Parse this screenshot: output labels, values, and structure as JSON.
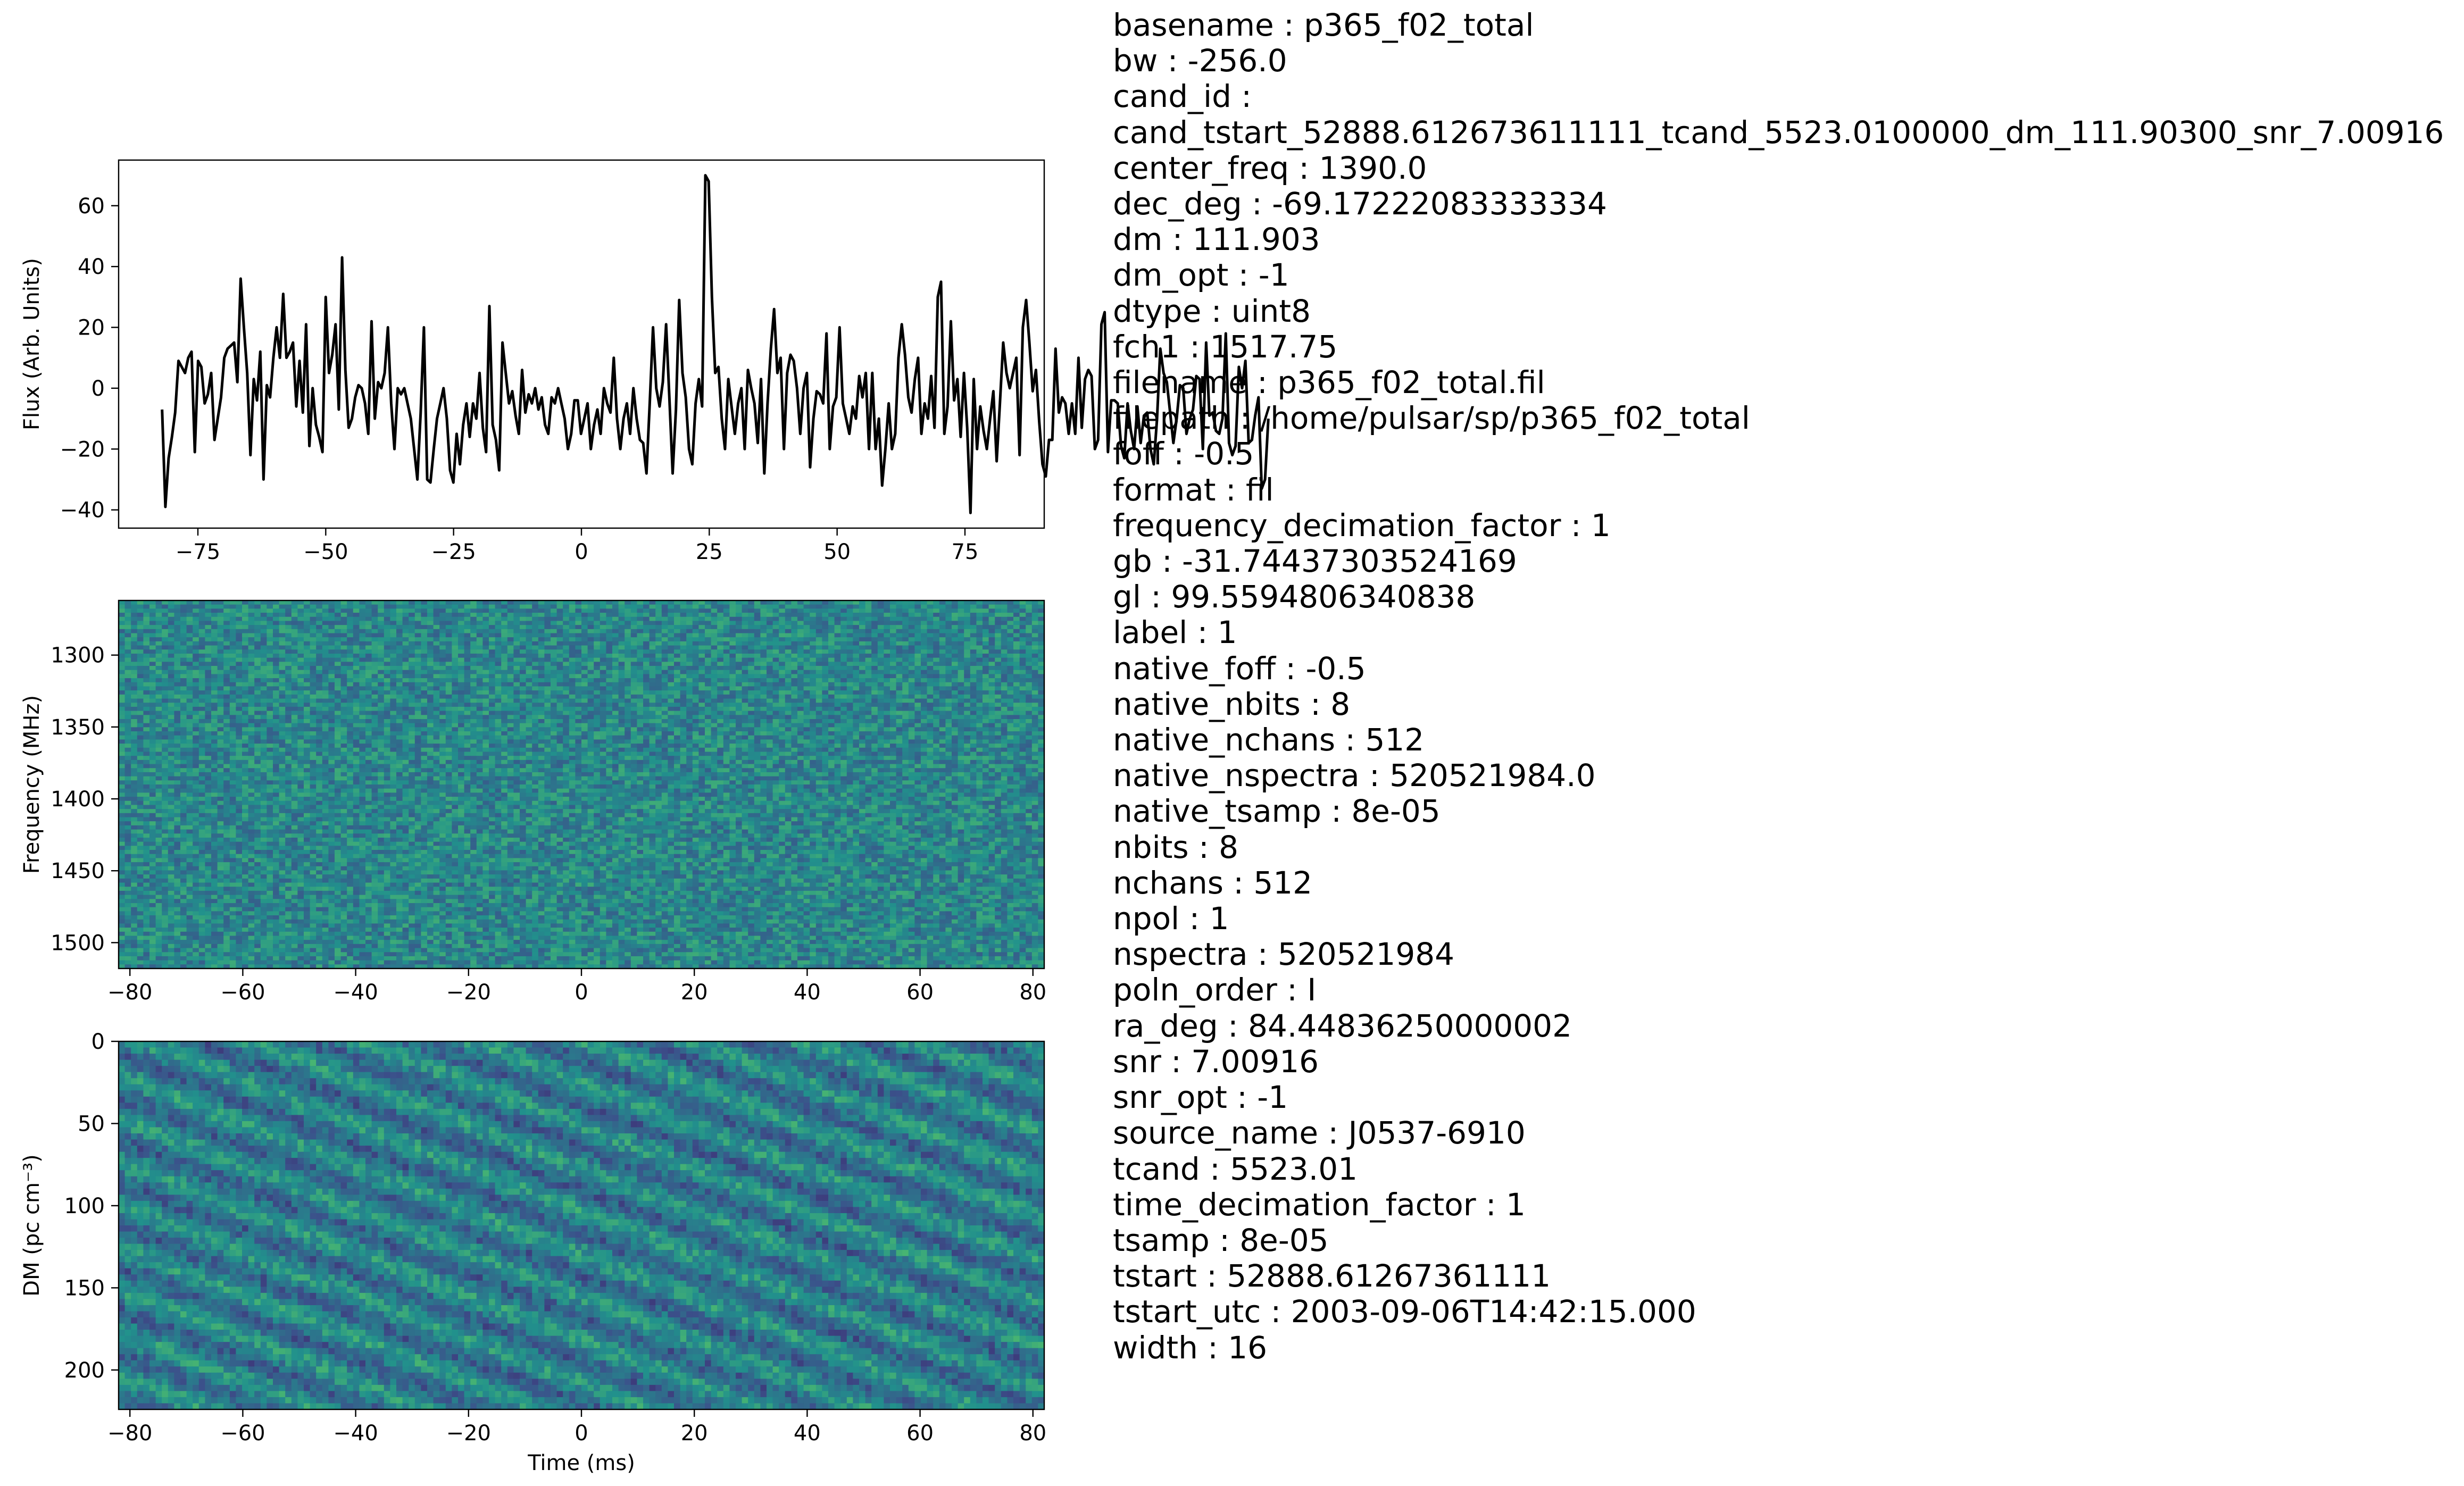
{
  "chart_data": [
    {
      "type": "line",
      "ylabel": "Flux (Arb. Units)",
      "xlabel": "",
      "xlim": [
        -90.5,
        90.5
      ],
      "ylim": [
        -46,
        75
      ],
      "xticks": [
        -75,
        -50,
        -25,
        0,
        25,
        50,
        75
      ],
      "xtick_labels": [
        "−75",
        "−50",
        "−25",
        "0",
        "25",
        "50",
        "75"
      ],
      "yticks": [
        -40,
        -20,
        0,
        20,
        40,
        60
      ],
      "ytick_labels": [
        "−40",
        "−20",
        "0",
        "20",
        "40",
        "60"
      ],
      "line_color": "#000000",
      "series": [
        {
          "x_start": -82,
          "x_step": 0.64,
          "values": [
            -7,
            -39,
            -23,
            -16,
            -8,
            9,
            7,
            5,
            10,
            12,
            -21,
            9,
            7,
            -5,
            -2,
            5,
            -17,
            -10,
            -3,
            10,
            13,
            14,
            15,
            2,
            36,
            20,
            5,
            -22,
            3,
            -4,
            12,
            -30,
            1,
            -3,
            10,
            20,
            10,
            31,
            10,
            12,
            15,
            -6,
            9,
            -8,
            21,
            -19,
            0,
            -12,
            -16,
            -21,
            30,
            5,
            11,
            21,
            -7,
            43,
            6,
            -13,
            -10,
            -3,
            1,
            0,
            -5,
            -15,
            22,
            -10,
            2,
            0,
            5,
            20,
            -5,
            -20,
            0,
            -2,
            0,
            -5,
            -10,
            -20,
            -30,
            -8,
            20,
            -30,
            -31,
            -20,
            -10,
            -5,
            0,
            -10,
            -27,
            -31,
            -15,
            -25,
            -12,
            -5,
            -16,
            -5,
            -10,
            5,
            -13,
            -21,
            27,
            -12,
            -17,
            -27,
            15,
            5,
            -5,
            -1,
            -9,
            -15,
            6,
            -8,
            -2,
            -5,
            0,
            -7,
            -3,
            -12,
            -15,
            -3,
            -5,
            0,
            -5,
            -10,
            -20,
            -15,
            -4,
            -4,
            -15,
            -10,
            -5,
            -20,
            -12,
            -7,
            -15,
            0,
            -5,
            -8,
            10,
            -10,
            -20,
            -10,
            -5,
            -15,
            0,
            -10,
            -17,
            -18,
            -28,
            -5,
            20,
            0,
            -6,
            2,
            21,
            -3,
            -28,
            -7,
            29,
            5,
            -3,
            -20,
            -25,
            -5,
            3,
            -6,
            70,
            68,
            30,
            5,
            7,
            -10,
            -20,
            3,
            -6,
            -15,
            -5,
            0,
            -20,
            6,
            0,
            -5,
            -18,
            3,
            -28,
            -5,
            13,
            26,
            5,
            10,
            -20,
            5,
            11,
            9,
            0,
            -15,
            0,
            5,
            -26,
            -10,
            -1,
            -2,
            -5,
            18,
            -20,
            -6,
            -3,
            20,
            -5,
            -10,
            -15,
            -6,
            -10,
            4,
            -3,
            5,
            -20,
            5,
            -20,
            -10,
            -32,
            -20,
            -5,
            -20,
            -15,
            10,
            21,
            11,
            -3,
            -8,
            3,
            10,
            -15,
            -5,
            -10,
            4,
            -13,
            30,
            35,
            -15,
            -6,
            22,
            -4,
            3,
            -16,
            5,
            -13,
            -41,
            3,
            -20,
            -6,
            -14,
            -20,
            -10,
            -1,
            -24,
            -5,
            15,
            5,
            0,
            5,
            10,
            -22,
            20,
            29,
            15,
            -1,
            6,
            -11,
            -25,
            -29,
            -17,
            -17,
            13,
            -8,
            -3,
            -5,
            -15,
            -5,
            -15,
            10,
            -13,
            3,
            6,
            4,
            -20,
            -17,
            21,
            25,
            -21,
            -4,
            -4,
            -5,
            -19,
            -23,
            -5,
            -14,
            -20,
            -6,
            -18,
            -9,
            -8,
            -20,
            -25,
            -10,
            13,
            5,
            2,
            -8,
            -18,
            -10,
            1,
            0,
            -15,
            -10,
            -7,
            4,
            3,
            -20,
            15,
            -9,
            -8,
            -14,
            -15,
            -10,
            18,
            -18,
            -22,
            -19,
            7,
            0,
            9,
            -18,
            -17,
            -9,
            -3,
            -33,
            -30,
            -10
          ]
        }
      ]
    },
    {
      "type": "heatmap",
      "ylabel": "Frequency (MHz)",
      "xlabel": "",
      "colormap": "viridis",
      "xlim": [
        -82,
        82
      ],
      "ylim": [
        1518,
        1262
      ],
      "xticks": [
        -80,
        -60,
        -40,
        -20,
        0,
        20,
        40,
        60,
        80
      ],
      "xtick_labels": [
        "−80",
        "−60",
        "−40",
        "−20",
        "0",
        "20",
        "40",
        "60",
        "80"
      ],
      "yticks": [
        1300,
        1350,
        1400,
        1450,
        1500
      ],
      "ytick_labels": [
        "1300",
        "1350",
        "1400",
        "1450",
        "1500"
      ],
      "texture": "noise",
      "mean_level": 0.46,
      "spread": 0.16
    },
    {
      "type": "heatmap",
      "ylabel": "DM (pc cm⁻³)",
      "xlabel": "Time (ms)",
      "colormap": "viridis",
      "xlim": [
        -82,
        82
      ],
      "ylim": [
        224,
        0
      ],
      "xticks": [
        -80,
        -60,
        -40,
        -20,
        0,
        20,
        40,
        60,
        80
      ],
      "xtick_labels": [
        "−80",
        "−60",
        "−40",
        "−20",
        "0",
        "20",
        "40",
        "60",
        "80"
      ],
      "yticks": [
        0,
        50,
        100,
        150,
        200
      ],
      "ytick_labels": [
        "0",
        "50",
        "100",
        "150",
        "200"
      ],
      "texture": "diagonal-streaks",
      "mean_level": 0.42,
      "spread": 0.2
    }
  ],
  "metadata": [
    "basename : p365_f02_total",
    "bw : -256.0",
    "cand_id :",
    "cand_tstart_52888.612673611111_tcand_5523.0100000_dm_111.90300_snr_7.00916",
    "center_freq : 1390.0",
    "dec_deg : -69.17222083333334",
    "dm : 111.903",
    "dm_opt : -1",
    "dtype : uint8",
    "fch1 : 1517.75",
    "filename : p365_f02_total.fil",
    "filepath : /home/pulsar/sp/p365_f02_total",
    "foff : -0.5",
    "format : fil",
    "frequency_decimation_factor : 1",
    "gb : -31.74437303524169",
    "gl : 99.5594806340838",
    "label : 1",
    "native_foff : -0.5",
    "native_nbits : 8",
    "native_nchans : 512",
    "native_nspectra : 520521984.0",
    "native_tsamp : 8e-05",
    "nbits : 8",
    "nchans : 512",
    "npol : 1",
    "nspectra : 520521984",
    "poln_order : I",
    "ra_deg : 84.44836250000002",
    "snr : 7.00916",
    "snr_opt : -1",
    "source_name : J0537-6910",
    "tcand : 5523.01",
    "time_decimation_factor : 1",
    "tsamp : 8e-05",
    "tstart : 52888.61267361111",
    "tstart_utc : 2003-09-06T14:42:15.000",
    "width : 16"
  ]
}
